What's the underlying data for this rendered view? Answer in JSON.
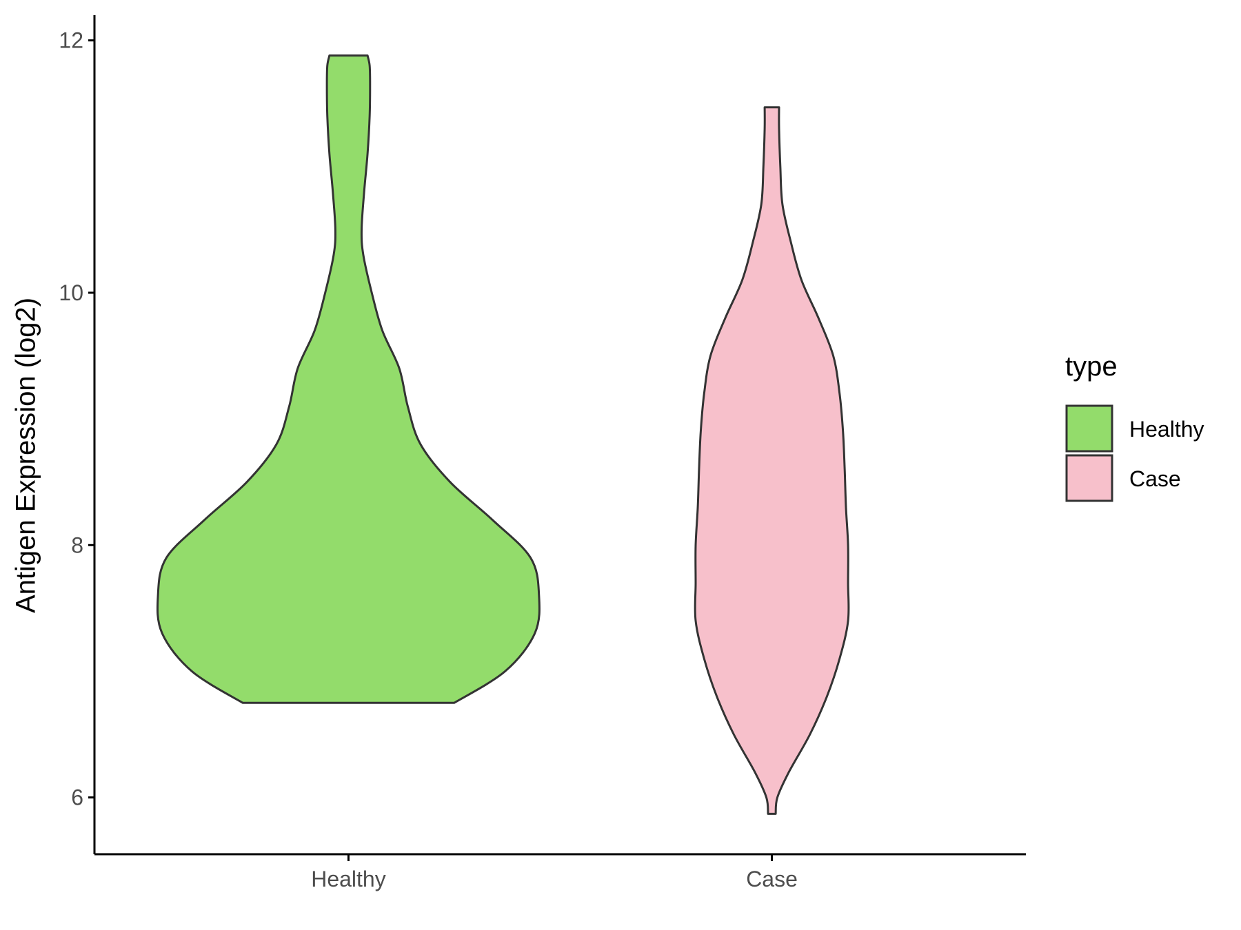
{
  "chart_data": {
    "type": "violin",
    "title": "",
    "xlabel": "",
    "ylabel": "Antigen Expression (log2)",
    "ylim": [
      5.55,
      12.2
    ],
    "y_ticks": [
      6,
      8,
      10,
      12
    ],
    "categories": [
      "Healthy",
      "Case"
    ],
    "legend": {
      "title": "type",
      "position": "right",
      "entries": [
        {
          "label": "Healthy",
          "color": "#93dc6b"
        },
        {
          "label": "Case",
          "color": "#f7c0cb"
        }
      ]
    },
    "grid": false,
    "series": [
      {
        "name": "Healthy",
        "category": "Healthy",
        "color": "#93dc6b",
        "density_profile": [
          {
            "y": 6.75,
            "half_width": 0.25
          },
          {
            "y": 7.0,
            "half_width": 0.37
          },
          {
            "y": 7.3,
            "half_width": 0.44
          },
          {
            "y": 7.6,
            "half_width": 0.45
          },
          {
            "y": 7.9,
            "half_width": 0.43
          },
          {
            "y": 8.2,
            "half_width": 0.34
          },
          {
            "y": 8.5,
            "half_width": 0.24
          },
          {
            "y": 8.8,
            "half_width": 0.17
          },
          {
            "y": 9.1,
            "half_width": 0.14
          },
          {
            "y": 9.4,
            "half_width": 0.12
          },
          {
            "y": 9.7,
            "half_width": 0.08
          },
          {
            "y": 10.0,
            "half_width": 0.055
          },
          {
            "y": 10.3,
            "half_width": 0.035
          },
          {
            "y": 10.5,
            "half_width": 0.031
          },
          {
            "y": 10.8,
            "half_width": 0.037
          },
          {
            "y": 11.1,
            "half_width": 0.045
          },
          {
            "y": 11.4,
            "half_width": 0.05
          },
          {
            "y": 11.65,
            "half_width": 0.051
          },
          {
            "y": 11.8,
            "half_width": 0.05
          },
          {
            "y": 11.88,
            "half_width": 0.045
          }
        ]
      },
      {
        "name": "Case",
        "category": "Case",
        "color": "#f7c0cb",
        "density_profile": [
          {
            "y": 5.87,
            "half_width": 0.009
          },
          {
            "y": 6.0,
            "half_width": 0.013
          },
          {
            "y": 6.2,
            "half_width": 0.04
          },
          {
            "y": 6.5,
            "half_width": 0.09
          },
          {
            "y": 6.8,
            "half_width": 0.13
          },
          {
            "y": 7.1,
            "half_width": 0.16
          },
          {
            "y": 7.4,
            "half_width": 0.18
          },
          {
            "y": 7.7,
            "half_width": 0.18
          },
          {
            "y": 8.0,
            "half_width": 0.18
          },
          {
            "y": 8.3,
            "half_width": 0.175
          },
          {
            "y": 8.6,
            "half_width": 0.172
          },
          {
            "y": 8.9,
            "half_width": 0.168
          },
          {
            "y": 9.2,
            "half_width": 0.16
          },
          {
            "y": 9.5,
            "half_width": 0.145
          },
          {
            "y": 9.8,
            "half_width": 0.11
          },
          {
            "y": 10.1,
            "half_width": 0.07
          },
          {
            "y": 10.4,
            "half_width": 0.045
          },
          {
            "y": 10.7,
            "half_width": 0.025
          },
          {
            "y": 11.0,
            "half_width": 0.02
          },
          {
            "y": 11.3,
            "half_width": 0.017
          },
          {
            "y": 11.47,
            "half_width": 0.017
          }
        ]
      }
    ]
  }
}
